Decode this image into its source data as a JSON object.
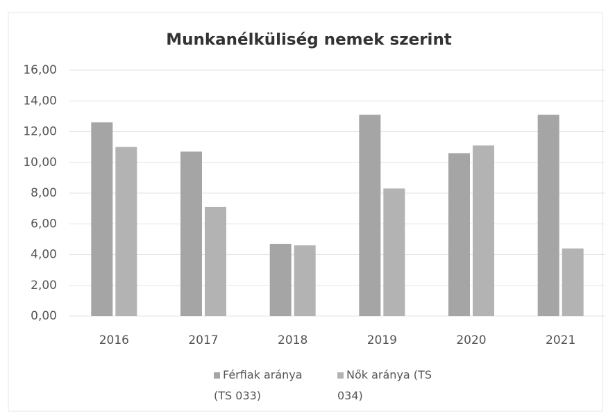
{
  "chart_data": {
    "type": "bar",
    "title": "Munkanélküliség nemek szerint",
    "categories": [
      "2016",
      "2017",
      "2018",
      "2019",
      "2020",
      "2021"
    ],
    "series": [
      {
        "name": "Férfiak aránya (TS 033)",
        "color": "#a5a5a5",
        "values": [
          12.6,
          10.7,
          4.7,
          13.1,
          10.6,
          13.1
        ]
      },
      {
        "name": "Nők aránya (TS 034)",
        "color": "#b3b3b3",
        "values": [
          11.0,
          7.1,
          4.6,
          8.3,
          11.1,
          4.4
        ]
      }
    ],
    "ylim": [
      0,
      16
    ],
    "yticks": [
      {
        "value": 0,
        "label": "0,00"
      },
      {
        "value": 2,
        "label": "2,00"
      },
      {
        "value": 4,
        "label": "4,00"
      },
      {
        "value": 6,
        "label": "6,00"
      },
      {
        "value": 8,
        "label": "8,00"
      },
      {
        "value": 10,
        "label": "10,00"
      },
      {
        "value": 12,
        "label": "12,00"
      },
      {
        "value": 14,
        "label": "14,00"
      },
      {
        "value": 16,
        "label": "16,00"
      }
    ],
    "grid": true,
    "legend": "bottom"
  }
}
